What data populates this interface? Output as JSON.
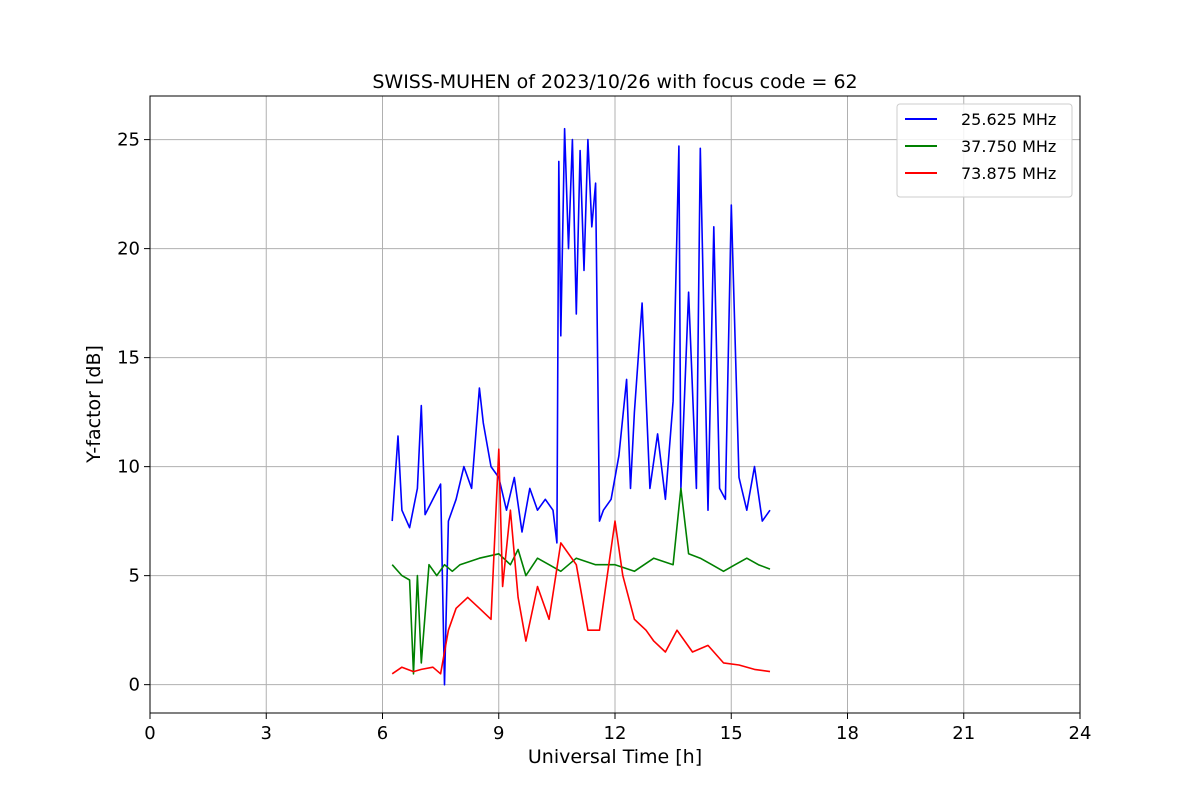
{
  "chart_data": {
    "type": "line",
    "title": "SWISS-MUHEN of 2023/10/26 with focus code = 62",
    "xlabel": "Universal Time [h]",
    "ylabel": "Y-factor [dB]",
    "xlim": [
      0,
      24
    ],
    "ylim": [
      -1.3,
      27
    ],
    "xticks": [
      0,
      3,
      6,
      9,
      12,
      15,
      18,
      21,
      24
    ],
    "yticks": [
      0,
      5,
      10,
      15,
      20,
      25
    ],
    "grid": true,
    "legend_position": "top-right",
    "series": [
      {
        "name": "25.625 MHz",
        "color": "#0000ff",
        "x": [
          6.25,
          6.4,
          6.5,
          6.7,
          6.9,
          7.0,
          7.1,
          7.3,
          7.5,
          7.6,
          7.7,
          7.9,
          8.1,
          8.3,
          8.5,
          8.6,
          8.8,
          9.0,
          9.2,
          9.4,
          9.6,
          9.8,
          10.0,
          10.2,
          10.4,
          10.5,
          10.55,
          10.6,
          10.7,
          10.8,
          10.9,
          11.0,
          11.1,
          11.2,
          11.3,
          11.4,
          11.5,
          11.55,
          11.6,
          11.7,
          11.9,
          12.1,
          12.3,
          12.4,
          12.5,
          12.7,
          12.9,
          13.1,
          13.3,
          13.5,
          13.65,
          13.7,
          13.9,
          14.1,
          14.2,
          14.4,
          14.55,
          14.7,
          14.85,
          15.0,
          15.2,
          15.4,
          15.6,
          15.8,
          16.0
        ],
        "y": [
          7.5,
          11.4,
          8.0,
          7.2,
          9.0,
          12.8,
          7.8,
          8.5,
          9.2,
          0.0,
          7.5,
          8.5,
          10.0,
          9.0,
          13.6,
          12.0,
          10.0,
          9.5,
          8.0,
          9.5,
          7.0,
          9.0,
          8.0,
          8.5,
          8.0,
          6.5,
          24.0,
          16.0,
          25.5,
          20.0,
          25.0,
          17.0,
          24.5,
          19.0,
          25.0,
          21.0,
          23.0,
          15.0,
          7.5,
          8.0,
          8.5,
          10.5,
          14.0,
          9.0,
          12.5,
          17.5,
          9.0,
          11.5,
          8.5,
          13.0,
          24.7,
          9.0,
          18.0,
          9.0,
          24.6,
          8.0,
          21.0,
          9.0,
          8.5,
          22.0,
          9.5,
          8.0,
          10.0,
          7.5,
          8.0
        ]
      },
      {
        "name": "37.750 MHz",
        "color": "#008000",
        "x": [
          6.25,
          6.5,
          6.7,
          6.8,
          6.9,
          7.0,
          7.2,
          7.4,
          7.6,
          7.8,
          8.0,
          8.5,
          9.0,
          9.3,
          9.5,
          9.7,
          10.0,
          10.3,
          10.6,
          11.0,
          11.5,
          12.0,
          12.5,
          13.0,
          13.5,
          13.7,
          13.9,
          14.2,
          14.5,
          14.8,
          15.1,
          15.4,
          15.7,
          16.0
        ],
        "y": [
          5.5,
          5.0,
          4.8,
          0.5,
          5.0,
          1.0,
          5.5,
          5.0,
          5.5,
          5.2,
          5.5,
          5.8,
          6.0,
          5.5,
          6.2,
          5.0,
          5.8,
          5.5,
          5.2,
          5.8,
          5.5,
          5.5,
          5.2,
          5.8,
          5.5,
          9.0,
          6.0,
          5.8,
          5.5,
          5.2,
          5.5,
          5.8,
          5.5,
          5.3
        ]
      },
      {
        "name": "73.875 MHz",
        "color": "#ff0000",
        "x": [
          6.25,
          6.5,
          6.8,
          7.0,
          7.3,
          7.5,
          7.7,
          7.9,
          8.2,
          8.5,
          8.8,
          9.0,
          9.1,
          9.3,
          9.5,
          9.7,
          10.0,
          10.3,
          10.6,
          11.0,
          11.3,
          11.6,
          12.0,
          12.2,
          12.5,
          12.8,
          13.0,
          13.3,
          13.6,
          14.0,
          14.4,
          14.8,
          15.2,
          15.6,
          16.0
        ],
        "y": [
          0.5,
          0.8,
          0.6,
          0.7,
          0.8,
          0.5,
          2.5,
          3.5,
          4.0,
          3.5,
          3.0,
          10.8,
          4.5,
          8.0,
          4.0,
          2.0,
          4.5,
          3.0,
          6.5,
          5.5,
          2.5,
          2.5,
          7.5,
          5.0,
          3.0,
          2.5,
          2.0,
          1.5,
          2.5,
          1.5,
          1.8,
          1.0,
          0.9,
          0.7,
          0.6
        ]
      }
    ]
  }
}
